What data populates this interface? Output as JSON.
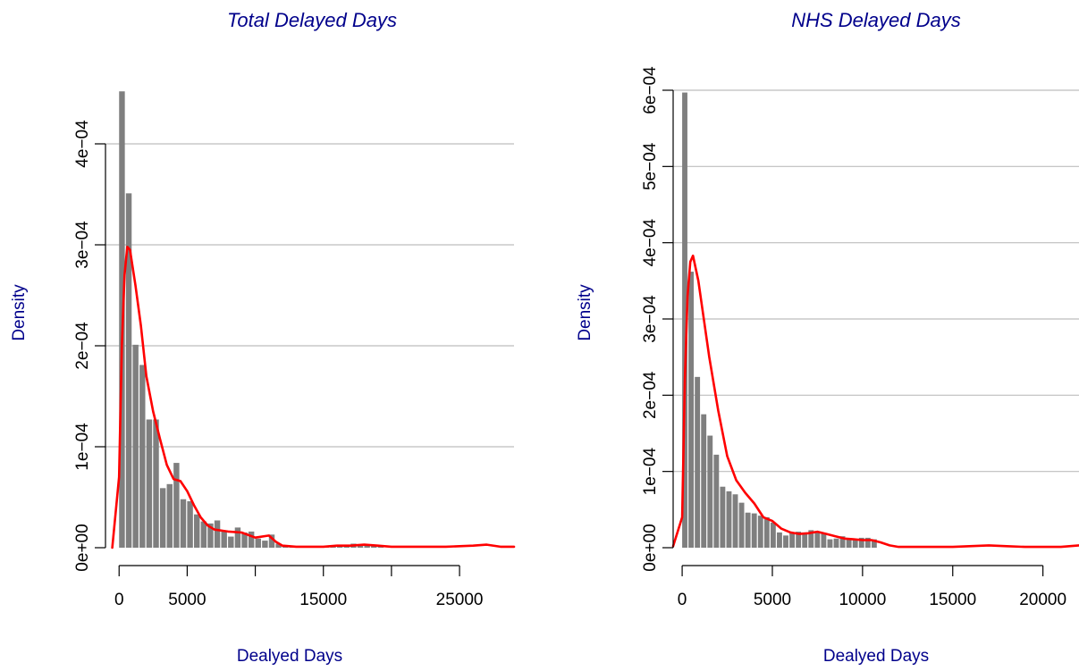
{
  "colors": {
    "bar": "#7f7f7f",
    "density": "#ff0000",
    "grid": "#bebebe",
    "label": "#00008b"
  },
  "chart_data": [
    {
      "type": "bar",
      "title": "Total Delayed Days",
      "xlabel": "Dealyed Days",
      "ylabel": "Density",
      "grid": true,
      "bin_width": 500,
      "xlim": [
        -1000,
        29000
      ],
      "ylim": [
        0,
        0.00045
      ],
      "x_ticks": [
        0,
        5000,
        10000,
        15000,
        20000,
        25000
      ],
      "x_tick_labels": [
        "0",
        "5000",
        "",
        "15000",
        "",
        "25000"
      ],
      "y_ticks": [
        0,
        0.0001,
        0.0002,
        0.0003,
        0.0004
      ],
      "y_tick_labels": [
        "0e+00",
        "1e−04",
        "2e−04",
        "3e−04",
        "4e−04"
      ],
      "x_bin_starts": [
        0,
        500,
        1000,
        1500,
        2000,
        2500,
        3000,
        3500,
        4000,
        4500,
        5000,
        5500,
        6000,
        6500,
        7000,
        7500,
        8000,
        8500,
        9000,
        9500,
        10000,
        10500,
        11000,
        11500,
        12000,
        12500,
        13000,
        13500,
        14000,
        14500,
        15000,
        15500,
        16000,
        16500,
        17000,
        17500,
        18000,
        18500,
        19000
      ],
      "values": [
        0.000452,
        0.000351,
        0.000201,
        0.000181,
        0.000127,
        0.000127,
        5.9e-05,
        6.3e-05,
        8.4e-05,
        4.8e-05,
        4.6e-05,
        3.3e-05,
        2.6e-05,
        2.4e-05,
        2.7e-05,
        1.7e-05,
        1.1e-05,
        2e-05,
        1.5e-05,
        1.6e-05,
        9e-06,
        7e-06,
        1.3e-05,
        4e-06,
        1e-06,
        1e-06,
        1e-06,
        0,
        0,
        1e-06,
        1e-06,
        2e-06,
        2e-06,
        1e-06,
        4e-06,
        2e-06,
        3e-06,
        2e-06,
        1e-06
      ],
      "density_curve": {
        "x": [
          -500,
          0,
          200,
          400,
          600,
          800,
          1200,
          1600,
          2000,
          2500,
          3000,
          3500,
          4000,
          4500,
          5000,
          5500,
          6000,
          6500,
          7000,
          8000,
          9000,
          10000,
          11000,
          11500,
          12000,
          13000,
          14000,
          15000,
          16000,
          17000,
          18000,
          19000,
          20000,
          22000,
          24000,
          26000,
          27000,
          28000,
          29000
        ],
        "y": [
          0,
          7e-05,
          0.0002,
          0.00027,
          0.000298,
          0.000295,
          0.00026,
          0.00022,
          0.00017,
          0.000135,
          0.000108,
          8.2e-05,
          6.8e-05,
          6.6e-05,
          5.6e-05,
          4.2e-05,
          3e-05,
          2.2e-05,
          1.8e-05,
          1.6e-05,
          1.5e-05,
          1e-05,
          1.2e-05,
          6e-06,
          2e-06,
          1e-06,
          1e-06,
          1e-06,
          2e-06,
          2e-06,
          3e-06,
          2e-06,
          1e-06,
          1e-06,
          1e-06,
          2e-06,
          3e-06,
          1e-06,
          1e-06
        ]
      }
    },
    {
      "type": "bar",
      "title": "NHS Delayed Days",
      "xlabel": "Dealyed Days",
      "ylabel": "Density",
      "grid": true,
      "bin_width": 350,
      "xlim": [
        -500,
        22000
      ],
      "ylim": [
        0,
        0.0006
      ],
      "x_ticks": [
        0,
        5000,
        10000,
        15000,
        20000
      ],
      "x_tick_labels": [
        "0",
        "5000",
        "10000",
        "15000",
        "20000"
      ],
      "y_ticks": [
        0,
        0.0001,
        0.0002,
        0.0003,
        0.0004,
        0.0005,
        0.0006
      ],
      "y_tick_labels": [
        "0e+00",
        "1e−04",
        "2e−04",
        "3e−04",
        "4e−04",
        "5e−04",
        "6e−04"
      ],
      "x_bin_starts": [
        0,
        350,
        700,
        1050,
        1400,
        1750,
        2100,
        2450,
        2800,
        3150,
        3500,
        3850,
        4200,
        4550,
        4900,
        5250,
        5600,
        5950,
        6300,
        6650,
        7000,
        7350,
        7700,
        8050,
        8400,
        8750,
        9100,
        9450,
        9800,
        10150,
        10500
      ],
      "values": [
        0.000597,
        0.000362,
        0.000224,
        0.000175,
        0.000147,
        0.000122,
        8e-05,
        7.4e-05,
        7e-05,
        5.9e-05,
        4.6e-05,
        4.5e-05,
        4.2e-05,
        4e-05,
        3.3e-05,
        2e-05,
        1.6e-05,
        2e-05,
        2.1e-05,
        2e-05,
        2.3e-05,
        2e-05,
        1.9e-05,
        1.1e-05,
        1.2e-05,
        1.5e-05,
        1.2e-05,
        1e-05,
        1.3e-05,
        1.3e-05,
        1.1e-05
      ],
      "density_curve": {
        "x": [
          -500,
          0,
          150,
          300,
          450,
          600,
          900,
          1200,
          1500,
          2000,
          2500,
          3000,
          3500,
          4000,
          4500,
          5000,
          5500,
          6000,
          6500,
          7000,
          7500,
          8000,
          8500,
          9000,
          9500,
          10000,
          10500,
          11000,
          11500,
          12000,
          13000,
          15000,
          17000,
          18000,
          19000,
          20000,
          21000,
          22000
        ],
        "y": [
          2e-06,
          4e-05,
          0.00022,
          0.00033,
          0.000375,
          0.000383,
          0.00035,
          0.0003,
          0.00025,
          0.00018,
          0.00012,
          8.85e-05,
          7.2e-05,
          5.8e-05,
          4e-05,
          3.5e-05,
          2.5e-05,
          2e-05,
          1.8e-05,
          1.9e-05,
          2.1e-05,
          1.8e-05,
          1.5e-05,
          1.2e-05,
          1.1e-05,
          1e-05,
          1e-05,
          7e-06,
          3e-06,
          1e-06,
          1e-06,
          1e-06,
          3e-06,
          2e-06,
          1e-06,
          1e-06,
          1e-06,
          3e-06
        ]
      }
    }
  ]
}
